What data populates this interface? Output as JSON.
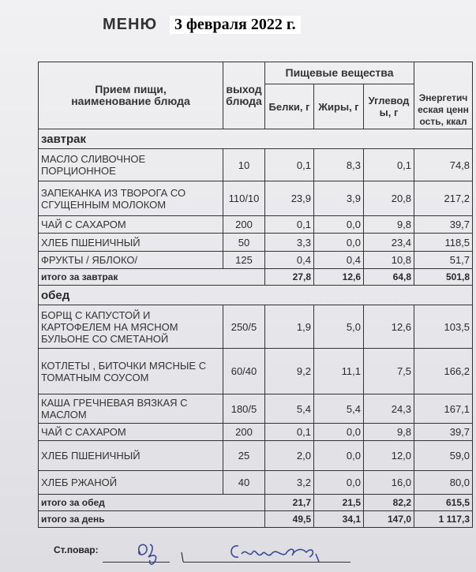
{
  "header": {
    "title": "МЕНЮ",
    "date": "3 февраля  2022 г."
  },
  "columns": {
    "name": "Прием пищи, наименование блюда",
    "yield": "выход блюда",
    "nutrients": "Пищевые вещества",
    "protein": "Белки, г",
    "fat": "Жиры, г",
    "carbs": "Углеводы, г",
    "energy": "Энергетическая ценность, ккал"
  },
  "sections": [
    {
      "title": "завтрак",
      "rows": [
        {
          "name": "МАСЛО  СЛИВОЧНОЕ ПОРЦИОННОЕ",
          "yield": "10",
          "protein": "0,1",
          "fat": "8,3",
          "carbs": "0,1",
          "energy": "74,8"
        },
        {
          "name": "ЗАПЕКАНКА ИЗ ТВОРОГА СО СГУЩЕННЫМ  МОЛОКОМ",
          "yield": "110/10",
          "protein": "23,9",
          "fat": "3,9",
          "carbs": "20,8",
          "energy": "217,2"
        },
        {
          "name": "ЧАЙ С САХАРОМ",
          "yield": "200",
          "protein": "0,1",
          "fat": "0,0",
          "carbs": "9,8",
          "energy": "39,7"
        },
        {
          "name": "ХЛЕБ ПШЕНИЧНЫЙ",
          "yield": "50",
          "protein": "3,3",
          "fat": "0,0",
          "carbs": "23,4",
          "energy": "118,5"
        },
        {
          "name": "ФРУКТЫ / ЯБЛОКО/",
          "yield": "125",
          "protein": "0,4",
          "fat": "0,4",
          "carbs": "10,8",
          "energy": "51,7"
        }
      ],
      "total": {
        "label": "итого за завтрак",
        "protein": "27,8",
        "fat": "12,6",
        "carbs": "64,8",
        "energy": "501,8"
      }
    },
    {
      "title": "обед",
      "rows": [
        {
          "name": "БОРЩ С КАПУСТОЙ И КАРТОФЕЛЕМ НА МЯСНОМ БУЛЬОНЕ СО СМЕТАНОЙ",
          "yield": "250/5",
          "protein": "1,9",
          "fat": "5,0",
          "carbs": "12,6",
          "energy": "103,5"
        },
        {
          "name": "КОТЛЕТЫ ,  БИТОЧКИ МЯСНЫЕ С ТОМАТНЫМ СОУСОМ",
          "yield": "60/40",
          "protein": "9,2",
          "fat": "11,1",
          "carbs": "7,5",
          "energy": "166,2"
        },
        {
          "name": "КАША ГРЕЧНЕВАЯ ВЯЗКАЯ С МАСЛОМ",
          "yield": "180/5",
          "protein": "5,4",
          "fat": "5,4",
          "carbs": "24,3",
          "energy": "167,1"
        },
        {
          "name": "ЧАЙ С САХАРОМ",
          "yield": "200",
          "protein": "0,1",
          "fat": "0,0",
          "carbs": "9,8",
          "energy": "39,7"
        },
        {
          "name": "ХЛЕБ ПШЕНИЧНЫЙ",
          "yield": "25",
          "protein": "2,0",
          "fat": "0,0",
          "carbs": "12,0",
          "energy": "59,0"
        },
        {
          "name": "ХЛЕБ РЖАНОЙ",
          "yield": "40",
          "protein": "3,2",
          "fat": "0,0",
          "carbs": "16,0",
          "energy": "80,0"
        }
      ],
      "total": {
        "label": "итого за обед",
        "protein": "21,7",
        "fat": "21,5",
        "carbs": "82,2",
        "energy": "615,5"
      }
    }
  ],
  "day_total": {
    "label": "итого за день",
    "protein": "49,5",
    "fat": "34,1",
    "carbs": "147,0",
    "energy": "1 117,3"
  },
  "footer": {
    "chef_label": "Ст.повар:",
    "signature": "Семенова"
  },
  "colors": {
    "ink": "#333333",
    "signature": "#3a4a9a"
  }
}
